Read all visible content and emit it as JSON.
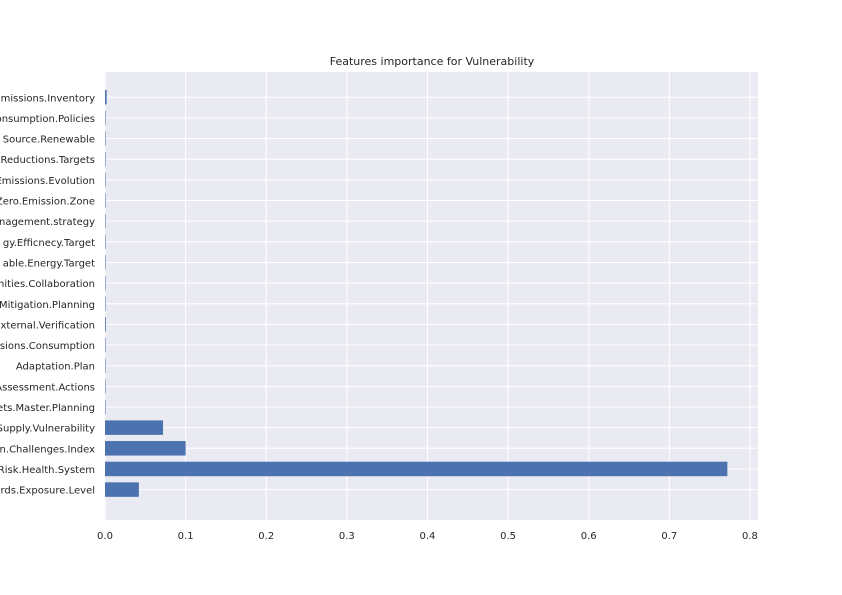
{
  "chart_data": {
    "type": "bar",
    "orientation": "horizontal",
    "title": "Features importance for Vulnerability",
    "xlabel": "",
    "ylabel": "",
    "xlim": [
      0,
      0.81
    ],
    "xticks": [
      "0.0",
      "0.1",
      "0.2",
      "0.3",
      "0.4",
      "0.5",
      "0.6",
      "0.7",
      "0.8"
    ],
    "grid": true,
    "bar_color": "#4c72b0",
    "background_color": "#eaeaf2",
    "categories": [
      "Emissions.Inventory",
      "onsumption.Policies",
      "Source.Renewable",
      "Reductions.Targets",
      "Emissions.Evolution",
      "Zero.Emission.Zone",
      "anagement.strategy",
      "gy.Efficnecy.Target",
      "able.Energy.Target",
      "nities.Collaboration",
      "Mitigation.Planning",
      "External.Verification",
      "ssions.Consumption",
      "Adaptation.Plan",
      "Assessment.Actions",
      "ets.Master.Planning",
      "Supply.Vulnerability",
      "on.Challenges.Index",
      "Risk.Health.System",
      "rds.Exposure.Level"
    ],
    "values": [
      0.002,
      0.0005,
      0.0005,
      0.0005,
      0.0005,
      0.0005,
      0.0005,
      0.0005,
      0.0005,
      0.0005,
      0.0005,
      0.001,
      0.0005,
      0.0005,
      0.0005,
      0.0005,
      0.072,
      0.1,
      0.772,
      0.042
    ]
  }
}
